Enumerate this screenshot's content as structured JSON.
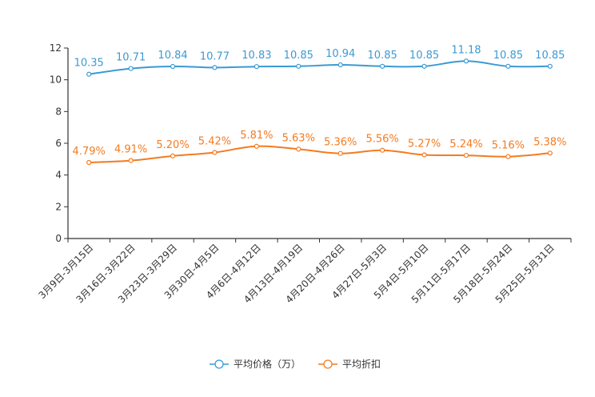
{
  "chart_data": {
    "type": "line",
    "categories": [
      "3月9日-3月15日",
      "3月16日-3月22日",
      "3月23日-3月29日",
      "3月30日-4月5日",
      "4月6日-4月12日",
      "4月13日-4月19日",
      "4月20日-4月26日",
      "4月27日-5月3日",
      "5月4日-5月10日",
      "5月11日-5月17日",
      "5月18日-5月24日",
      "5月25日-5月31日"
    ],
    "series": [
      {
        "name": "平均价格（万）",
        "color": "#3a9ad5",
        "values": [
          10.35,
          10.71,
          10.84,
          10.77,
          10.83,
          10.85,
          10.94,
          10.85,
          10.85,
          11.18,
          10.85,
          10.85
        ],
        "labels": [
          "10.35",
          "10.71",
          "10.84",
          "10.77",
          "10.83",
          "10.85",
          "10.94",
          "10.85",
          "10.85",
          "11.18",
          "10.85",
          "10.85"
        ]
      },
      {
        "name": "平均折扣",
        "color": "#f47b20",
        "values": [
          4.79,
          4.91,
          5.2,
          5.42,
          5.81,
          5.63,
          5.36,
          5.56,
          5.27,
          5.24,
          5.16,
          5.38
        ],
        "labels": [
          "4.79%",
          "4.91%",
          "5.20%",
          "5.42%",
          "5.81%",
          "5.63%",
          "5.36%",
          "5.56%",
          "5.27%",
          "5.24%",
          "5.16%",
          "5.38%"
        ]
      }
    ],
    "yticks": [
      "0",
      "2",
      "4",
      "6",
      "8",
      "10",
      "12"
    ],
    "ylim": [
      0,
      12
    ],
    "xlabel": "",
    "ylabel": "",
    "legend_position": "bottom-center",
    "grid": false
  }
}
